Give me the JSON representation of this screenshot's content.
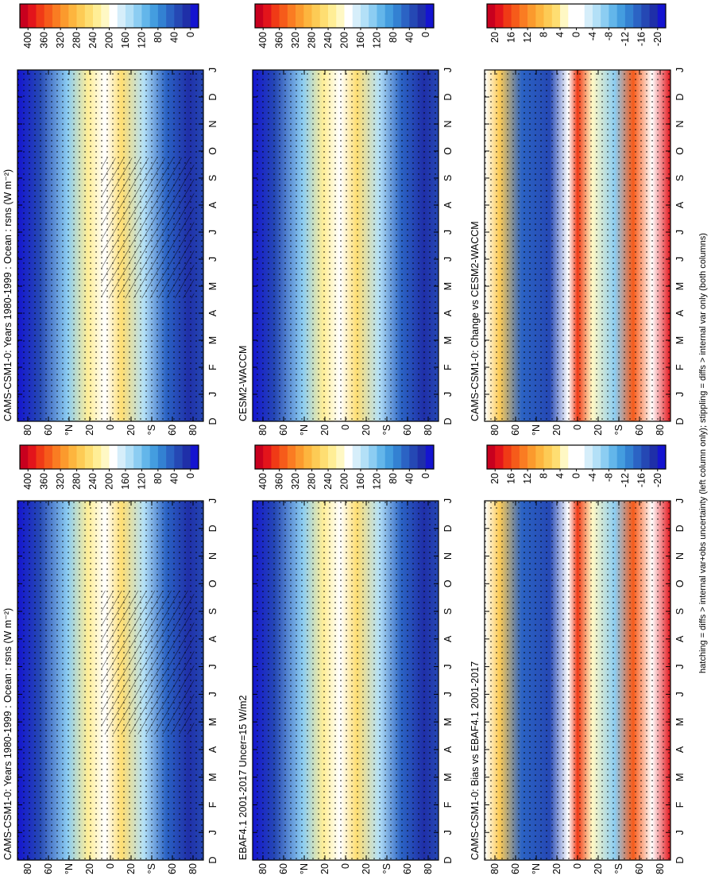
{
  "chart_data": [
    {
      "type": "contour",
      "title": "CAMS-CSM1-0: Years 1980-1999 : Ocean : rsns (W m⁻²)",
      "categories": [
        "D",
        "J",
        "F",
        "M",
        "A",
        "M",
        "J",
        "J",
        "A",
        "S",
        "O",
        "N",
        "D",
        "J"
      ],
      "ylim": [
        90,
        -90
      ],
      "yticks": [
        {
          "value": 80,
          "label": "80"
        },
        {
          "value": 60,
          "label": "60"
        },
        {
          "value": 40,
          "label": "°N"
        },
        20,
        0,
        {
          "value": -20,
          "label": "20"
        },
        {
          "value": -40,
          "label": "°S"
        },
        {
          "value": -60,
          "label": "60"
        },
        {
          "value": -80,
          "label": "80"
        }
      ],
      "colorbar": {
        "clim": [
          420,
          -20
        ],
        "ticks": [
          400,
          360,
          320,
          280,
          240,
          200,
          160,
          120,
          80,
          40,
          0
        ],
        "colors": [
          "#c8001e",
          "#e3141b",
          "#f03a16",
          "#f65b1a",
          "#fa7c22",
          "#fb9a2d",
          "#fdb53e",
          "#fdcb55",
          "#fede72",
          "#ffee96",
          "#fff8c4",
          "#ffffff",
          "#d6eefa",
          "#b3e0f7",
          "#8ccdf2",
          "#63b6ea",
          "#449ddf",
          "#3381d2",
          "#2b63c4",
          "#2548b4",
          "#1f2fa8",
          "#1414d0"
        ]
      }
    },
    {
      "type": "contour",
      "title": "CAMS-CSM1-0: Years 1980-1999 : Ocean : rsns (W m⁻²)",
      "categories": [
        "D",
        "J",
        "F",
        "M",
        "A",
        "M",
        "J",
        "J",
        "A",
        "S",
        "O",
        "N",
        "D",
        "J"
      ],
      "ylim": [
        90,
        -90
      ],
      "yticks": [
        {
          "value": 80,
          "label": "80"
        },
        {
          "value": 60,
          "label": "60"
        },
        {
          "value": 40,
          "label": "°N"
        },
        20,
        0,
        {
          "value": -20,
          "label": "20"
        },
        {
          "value": -40,
          "label": "°S"
        },
        {
          "value": -60,
          "label": "60"
        },
        {
          "value": -80,
          "label": "80"
        }
      ],
      "colorbar": {
        "clim": [
          420,
          -20
        ],
        "ticks": [
          400,
          360,
          320,
          280,
          240,
          200,
          160,
          120,
          80,
          40,
          0
        ],
        "colors": [
          "#c8001e",
          "#e3141b",
          "#f03a16",
          "#f65b1a",
          "#fa7c22",
          "#fb9a2d",
          "#fdb53e",
          "#fdcb55",
          "#fede72",
          "#ffee96",
          "#fff8c4",
          "#ffffff",
          "#d6eefa",
          "#b3e0f7",
          "#8ccdf2",
          "#63b6ea",
          "#449ddf",
          "#3381d2",
          "#2b63c4",
          "#2548b4",
          "#1f2fa8",
          "#1414d0"
        ]
      }
    },
    {
      "type": "contour",
      "title": "CESM2-WACCM",
      "categories": [
        "D",
        "J",
        "F",
        "M",
        "A",
        "M",
        "J",
        "J",
        "A",
        "S",
        "O",
        "N",
        "D",
        "J"
      ],
      "ylim": [
        90,
        -90
      ],
      "yticks": [
        {
          "value": 80,
          "label": "80"
        },
        {
          "value": 60,
          "label": "60"
        },
        {
          "value": 40,
          "label": "°N"
        },
        20,
        0,
        {
          "value": -20,
          "label": "20"
        },
        {
          "value": -40,
          "label": "°S"
        },
        {
          "value": -60,
          "label": "60"
        },
        {
          "value": -80,
          "label": "80"
        }
      ],
      "colorbar": {
        "clim": [
          420,
          -20
        ],
        "ticks": [
          400,
          360,
          320,
          280,
          240,
          200,
          160,
          120,
          80,
          40,
          0
        ],
        "colors": [
          "#c8001e",
          "#e3141b",
          "#f03a16",
          "#f65b1a",
          "#fa7c22",
          "#fb9a2d",
          "#fdb53e",
          "#fdcb55",
          "#fede72",
          "#ffee96",
          "#fff8c4",
          "#ffffff",
          "#d6eefa",
          "#b3e0f7",
          "#8ccdf2",
          "#63b6ea",
          "#449ddf",
          "#3381d2",
          "#2b63c4",
          "#2548b4",
          "#1f2fa8",
          "#1414d0"
        ]
      }
    },
    {
      "type": "contour",
      "title": "EBAF4.1 2001-2017 Uncer=15 W/m2",
      "categories": [
        "D",
        "J",
        "F",
        "M",
        "A",
        "M",
        "J",
        "J",
        "A",
        "S",
        "O",
        "N",
        "D",
        "J"
      ],
      "ylim": [
        90,
        -90
      ],
      "yticks": [
        {
          "value": 80,
          "label": "80"
        },
        {
          "value": 60,
          "label": "60"
        },
        {
          "value": 40,
          "label": "°N"
        },
        20,
        0,
        {
          "value": -20,
          "label": "20"
        },
        {
          "value": -40,
          "label": "°S"
        },
        {
          "value": -60,
          "label": "60"
        },
        {
          "value": -80,
          "label": "80"
        }
      ],
      "colorbar": {
        "clim": [
          420,
          -20
        ],
        "ticks": [
          400,
          360,
          320,
          280,
          240,
          200,
          160,
          120,
          80,
          40,
          0
        ],
        "colors": [
          "#c8001e",
          "#e3141b",
          "#f03a16",
          "#f65b1a",
          "#fa7c22",
          "#fb9a2d",
          "#fdb53e",
          "#fdcb55",
          "#fede72",
          "#ffee96",
          "#fff8c4",
          "#ffffff",
          "#d6eefa",
          "#b3e0f7",
          "#8ccdf2",
          "#63b6ea",
          "#449ddf",
          "#3381d2",
          "#2b63c4",
          "#2548b4",
          "#1f2fa8",
          "#1414d0"
        ]
      }
    },
    {
      "type": "contour",
      "title": "CAMS-CSM1-0: Change vs CESM2-WACCM",
      "categories": [
        "D",
        "J",
        "F",
        "M",
        "A",
        "M",
        "J",
        "J",
        "A",
        "S",
        "O",
        "N",
        "D",
        "J"
      ],
      "ylim": [
        90,
        -90
      ],
      "yticks": [
        {
          "value": 80,
          "label": "80"
        },
        {
          "value": 60,
          "label": "60"
        },
        {
          "value": 40,
          "label": "°N"
        },
        20,
        0,
        {
          "value": -20,
          "label": "20"
        },
        {
          "value": -40,
          "label": "°S"
        },
        {
          "value": -60,
          "label": "60"
        },
        {
          "value": -80,
          "label": "80"
        }
      ],
      "colorbar": {
        "clim": [
          22,
          -22
        ],
        "ticks": [
          20,
          16,
          12,
          8,
          4,
          0,
          -4,
          -8,
          -12,
          -16,
          -20
        ],
        "colors": [
          "#c8001e",
          "#e3141b",
          "#f03a16",
          "#f65b1a",
          "#fa7c22",
          "#fb9a2d",
          "#fdb53e",
          "#fdcb55",
          "#fede72",
          "#fff8c4",
          "#ffffff",
          "#ffffff",
          "#d6eefa",
          "#b3e0f7",
          "#8ccdf2",
          "#63b6ea",
          "#449ddf",
          "#3381d2",
          "#2b63c4",
          "#2548b4",
          "#1f2fa8",
          "#1414d0"
        ]
      }
    },
    {
      "type": "contour",
      "title": "CAMS-CSM1-0: Bias vs EBAF4.1 2001-2017",
      "categories": [
        "D",
        "J",
        "F",
        "M",
        "A",
        "M",
        "J",
        "J",
        "A",
        "S",
        "O",
        "N",
        "D",
        "J"
      ],
      "ylim": [
        90,
        -90
      ],
      "yticks": [
        {
          "value": 80,
          "label": "80"
        },
        {
          "value": 60,
          "label": "60"
        },
        {
          "value": 40,
          "label": "°N"
        },
        20,
        0,
        {
          "value": -20,
          "label": "20"
        },
        {
          "value": -40,
          "label": "°S"
        },
        {
          "value": -60,
          "label": "60"
        },
        {
          "value": -80,
          "label": "80"
        }
      ],
      "colorbar": {
        "clim": [
          22,
          -22
        ],
        "ticks": [
          20,
          16,
          12,
          8,
          4,
          0,
          -4,
          -8,
          -12,
          -16,
          -20
        ],
        "colors": [
          "#c8001e",
          "#e3141b",
          "#f03a16",
          "#f65b1a",
          "#fa7c22",
          "#fb9a2d",
          "#fdb53e",
          "#fdcb55",
          "#fede72",
          "#fff8c4",
          "#ffffff",
          "#ffffff",
          "#d6eefa",
          "#b3e0f7",
          "#8ccdf2",
          "#63b6ea",
          "#449ddf",
          "#3381d2",
          "#2b63c4",
          "#2548b4",
          "#1f2fa8",
          "#1414d0"
        ]
      }
    }
  ],
  "footer": "hatching = diffs > internal var+obs uncertainty (left column only); stippling = diffs > internal var only (both columns)"
}
